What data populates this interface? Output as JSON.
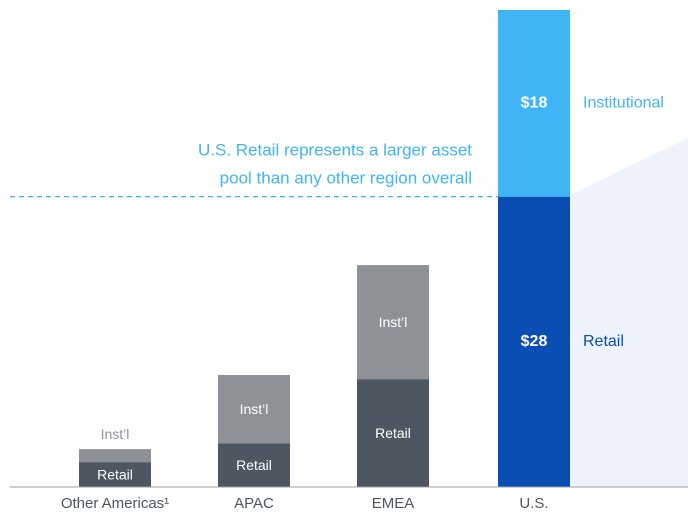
{
  "chart_data": {
    "type": "stacked_bar",
    "categories": [
      "Other Americas¹",
      "APAC",
      "EMEA",
      "U.S."
    ],
    "series": [
      {
        "name": "Retail",
        "colors": [
          "#4d5661",
          "#4d5661",
          "#4d5661",
          "#0a4db3"
        ],
        "values": [
          2.4,
          4.2,
          10.4,
          28
        ],
        "value_labels": [
          null,
          null,
          null,
          "$28"
        ]
      },
      {
        "name": "Inst’l",
        "colors": [
          "#8e9196",
          "#8e9196",
          "#8e9196",
          "#3fb5f5"
        ],
        "values": [
          1.25,
          6.6,
          11.0,
          18
        ],
        "value_labels": [
          null,
          null,
          null,
          "$18"
        ]
      }
    ],
    "side_labels": [
      "Retail",
      "Institutional"
    ],
    "annotation": [
      "U.S. Retail represents a larger asset",
      "pool than any other region overall"
    ],
    "ylim": [
      0,
      46
    ]
  }
}
